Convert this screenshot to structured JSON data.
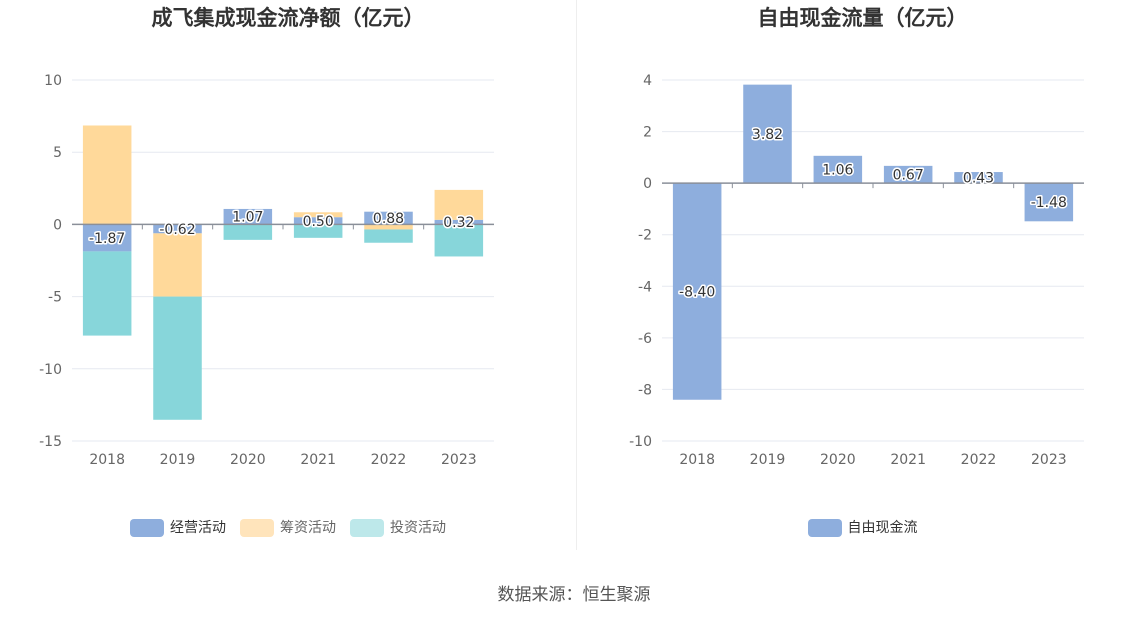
{
  "source": "数据来源：恒生聚源",
  "chart_data": [
    {
      "type": "bar",
      "stacked": true,
      "title": "成飞集成现金流净额（亿元）",
      "categories": [
        "2018",
        "2019",
        "2020",
        "2021",
        "2022",
        "2023"
      ],
      "ylim": [
        -15,
        10
      ],
      "yticks": [
        10,
        5,
        0,
        -5,
        -10,
        -15
      ],
      "grid": true,
      "legend_position": "bottom",
      "series": [
        {
          "name": "经营活动",
          "color": "#8eaedd",
          "values": [
            -1.87,
            -0.62,
            1.07,
            0.5,
            0.88,
            0.32
          ],
          "labeled": true
        },
        {
          "name": "筹资活动",
          "color": "#ffd99a",
          "values": [
            6.85,
            -4.38,
            0,
            0.34,
            -0.35,
            2.07
          ],
          "labeled": false
        },
        {
          "name": "投资活动",
          "color": "#87d6da",
          "values": [
            -5.83,
            -8.53,
            -1.07,
            -0.93,
            -0.92,
            -2.22
          ],
          "labeled": false
        }
      ],
      "data_labels": [
        "-1.87",
        "-0.62",
        "1.07",
        "0.50",
        "0.88",
        "0.32"
      ]
    },
    {
      "type": "bar",
      "title": "自由现金流量（亿元）",
      "categories": [
        "2018",
        "2019",
        "2020",
        "2021",
        "2022",
        "2023"
      ],
      "ylim": [
        -10,
        4
      ],
      "yticks": [
        4,
        2,
        0,
        -2,
        -4,
        -6,
        -8,
        -10
      ],
      "grid": true,
      "legend_position": "bottom",
      "series": [
        {
          "name": "自由现金流",
          "color": "#8eaedd",
          "values": [
            -8.4,
            3.82,
            1.06,
            0.67,
            0.43,
            -1.48
          ],
          "labeled": true
        }
      ],
      "data_labels": [
        "-8.40",
        "3.82",
        "1.06",
        "0.67",
        "0.43",
        "-1.48"
      ]
    }
  ]
}
